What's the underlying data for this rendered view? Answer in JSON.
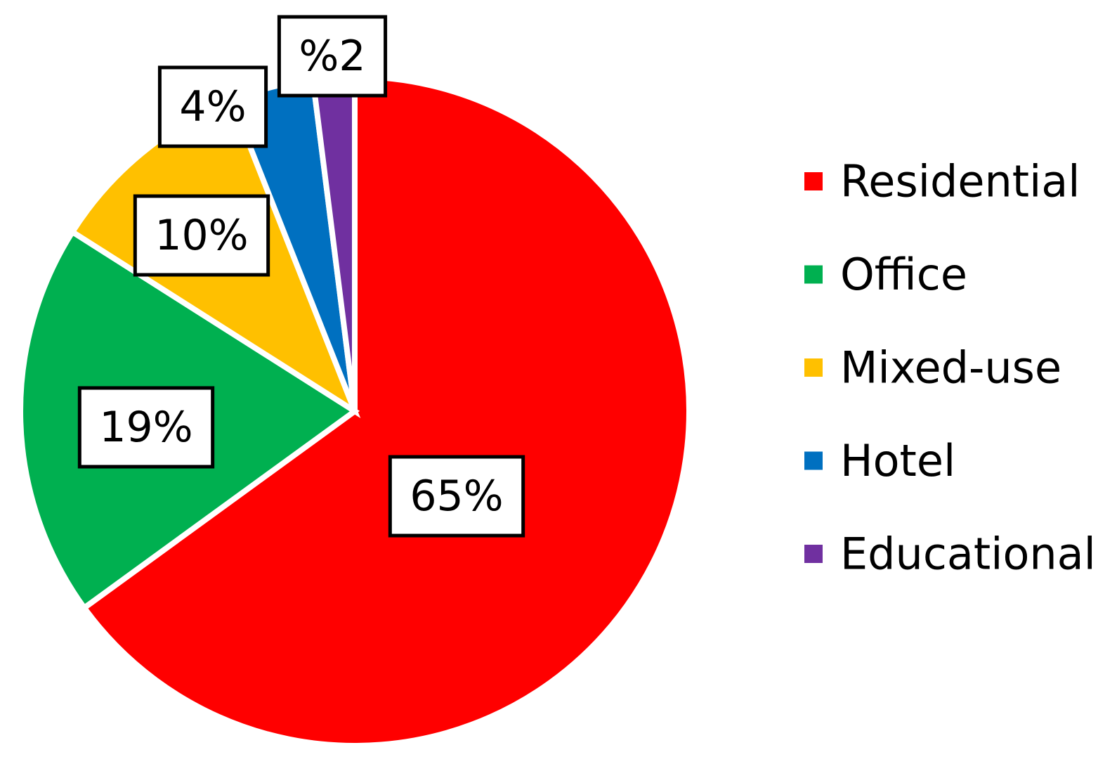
{
  "chart_data": {
    "type": "pie",
    "categories": [
      "Residential",
      "Office",
      "Mixed-use",
      "Hotel",
      "Educational"
    ],
    "values": [
      65,
      19,
      10,
      4,
      2
    ],
    "value_labels": [
      "65%",
      "19%",
      "10%",
      "4%",
      "%2"
    ],
    "colors": [
      "#ff0000",
      "#00b050",
      "#ffc000",
      "#0070c0",
      "#7030a0"
    ],
    "legend": "right"
  }
}
